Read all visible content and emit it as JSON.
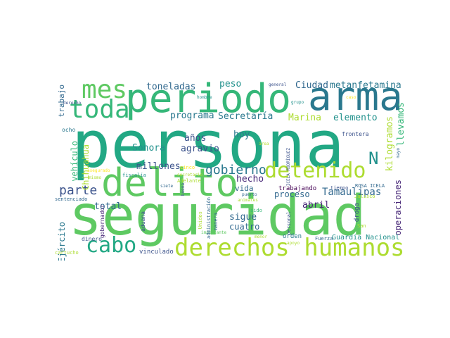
{
  "words": [
    {
      "text": "persona",
      "color": "#22a884"
    },
    {
      "text": "seguridad",
      "color": "#5ec962"
    },
    {
      "text": "delito",
      "color": "#5ec962"
    },
    {
      "text": "arma",
      "color": "#2a788e"
    },
    {
      "text": "periodo",
      "color": "#35b779"
    },
    {
      "text": "derechos humanos",
      "color": "#addc30"
    },
    {
      "text": "detenido",
      "color": "#addc30"
    },
    {
      "text": "toda",
      "color": "#35b779"
    },
    {
      "text": "mes",
      "color": "#5ec962"
    },
    {
      "text": "cabo",
      "color": "#22a884"
    },
    {
      "text": "N",
      "color": "#21918c"
    },
    {
      "text": "parte",
      "color": "#3b528b"
    },
    {
      "text": "gobierno",
      "color": "#2a788e"
    },
    {
      "text": "Tamaulipas",
      "color": "#31688e"
    },
    {
      "text": "Ciudad",
      "color": "#31688e"
    },
    {
      "text": "metanfetamina",
      "color": "#2a788e"
    },
    {
      "text": "Marina",
      "color": "#addc30"
    },
    {
      "text": "elemento",
      "color": "#21918c"
    },
    {
      "text": "Secretaría",
      "color": "#2a788e"
    },
    {
      "text": "programa",
      "color": "#2a788e"
    },
    {
      "text": "toneladas",
      "color": "#31688e"
    },
    {
      "text": "peso",
      "color": "#21918c"
    },
    {
      "text": "kilogramos",
      "color": "#addc30"
    },
    {
      "text": "llevamos",
      "color": "#35b779"
    },
    {
      "text": "años",
      "color": "#3b528b"
    },
    {
      "text": "agravio",
      "color": "#3b528b"
    },
    {
      "text": "Sonora",
      "color": "#21918c"
    },
    {
      "text": "millones",
      "color": "#3b528b"
    },
    {
      "text": "total",
      "color": "#31688e"
    },
    {
      "text": "hoy",
      "color": "#2a788e"
    },
    {
      "text": "hecho",
      "color": "#482878"
    },
    {
      "text": "vida",
      "color": "#31688e"
    },
    {
      "text": "proceso",
      "color": "#31688e"
    },
    {
      "text": "sigue",
      "color": "#31688e"
    },
    {
      "text": "cuatro",
      "color": "#31688e"
    },
    {
      "text": "abril",
      "color": "#482878"
    },
    {
      "text": "trabajo",
      "color": "#31688e"
    },
    {
      "text": "vehículo",
      "color": "#35b779"
    },
    {
      "text": "Chihuahua",
      "color": "#addc30"
    },
    {
      "text": "Ejército",
      "color": "#2a788e"
    },
    {
      "text": "operaciones",
      "color": "#482878"
    },
    {
      "text": "Guardia Nacional",
      "color": "#21918c"
    },
    {
      "text": "orden",
      "color": "#2a788e"
    },
    {
      "text": "droga",
      "color": "#3b528b"
    },
    {
      "text": "trabajando",
      "color": "#440154"
    },
    {
      "text": "ROSA ICELA",
      "color": "#31688e"
    },
    {
      "text": "ICELA RODRÍGUEZ",
      "color": "#3b528b"
    },
    {
      "text": "vinculado",
      "color": "#3b528b"
    },
    {
      "text": "dinero",
      "color": "#3b528b"
    },
    {
      "text": "aduana",
      "color": "#3b528b"
    },
    {
      "text": "gobernador",
      "color": "#482878"
    },
    {
      "text": "sentenciado",
      "color": "#31688e"
    },
    {
      "text": "cartucho",
      "color": "#addc30"
    },
    {
      "text": "ocho",
      "color": "#2a788e"
    },
    {
      "text": "derecho",
      "color": "#3b528b"
    },
    {
      "text": "hombre",
      "color": "#21918c"
    },
    {
      "text": "general",
      "color": "#3b528b"
    },
    {
      "text": "grupo",
      "color": "#21918c"
    },
    {
      "text": "caso",
      "color": "#fde725"
    },
    {
      "text": "frontera",
      "color": "#3b528b"
    },
    {
      "text": "mayo",
      "color": "#31688e"
    },
    {
      "text": "área",
      "color": "#b5de2b"
    },
    {
      "text": "tiempo",
      "color": "#3b528b"
    },
    {
      "text": "Jalisco",
      "color": "#addc30"
    },
    {
      "text": "San",
      "color": "#addc30"
    },
    {
      "text": "sido",
      "color": "#35b779"
    },
    {
      "text": "personal",
      "color": "#3b528b"
    },
    {
      "text": "Fuerza",
      "color": "#31688e"
    },
    {
      "text": "apoyo",
      "color": "#addc30"
    },
    {
      "text": "menor",
      "color": "#addc30"
    },
    {
      "text": "puerto",
      "color": "#31688e"
    },
    {
      "text": "animales",
      "color": "#addc30"
    },
    {
      "text": "importante",
      "color": "#5ec962"
    },
    {
      "text": "manera",
      "color": "#31688e"
    },
    {
      "text": "Unidos",
      "color": "#addc30"
    },
    {
      "text": "administración",
      "color": "#31688e"
    },
    {
      "text": "buena",
      "color": "#3b528b"
    },
    {
      "text": "siete",
      "color": "#31688e"
    },
    {
      "text": "cinco",
      "color": "#fde725"
    },
    {
      "text": "secretario",
      "color": "#addc30"
    },
    {
      "text": "Adelante",
      "color": "#addc30"
    },
    {
      "text": "fiscalía",
      "color": "#21918c"
    },
    {
      "text": "asegurado",
      "color": "#fde725"
    },
    {
      "text": "mismo",
      "color": "#addc30"
    }
  ]
}
